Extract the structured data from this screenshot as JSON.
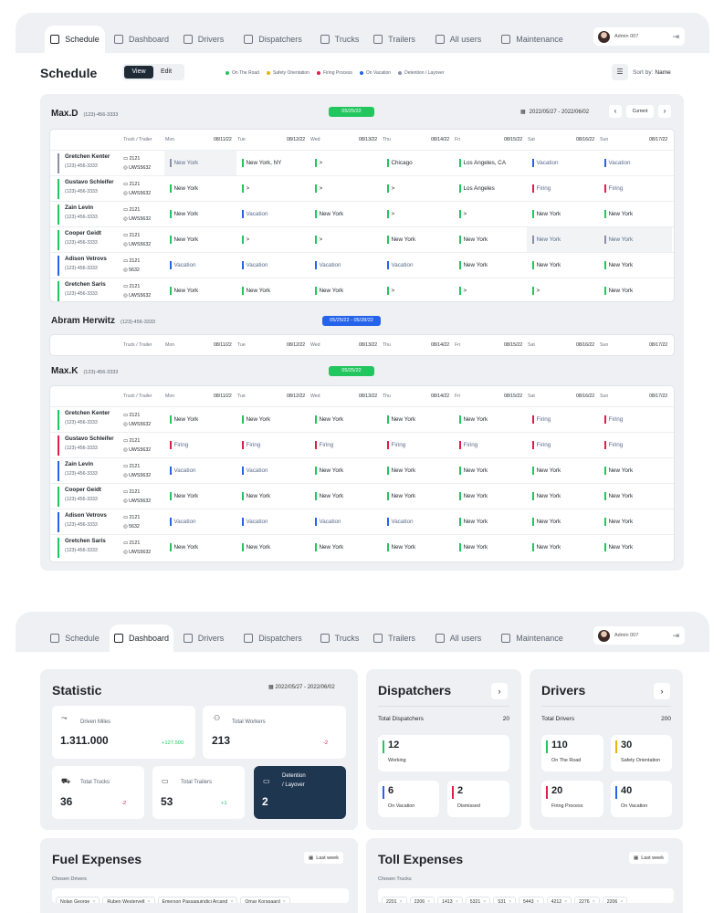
{
  "nav": {
    "tabs": [
      {
        "label": "Schedule",
        "icon": "calendar-icon"
      },
      {
        "label": "Dashboard",
        "icon": "grid-icon"
      },
      {
        "label": "Drivers",
        "icon": "steering-wheel-icon"
      },
      {
        "label": "Dispatchers",
        "icon": "person-icon"
      },
      {
        "label": "Trucks",
        "icon": "truck-icon"
      },
      {
        "label": "Trailers",
        "icon": "trailer-icon"
      },
      {
        "label": "All users",
        "icon": "users-icon"
      },
      {
        "label": "Maintenance",
        "icon": "gear-icon"
      }
    ],
    "user": "Admin 007"
  },
  "schedule": {
    "title": "Schedule",
    "view_label": "View",
    "edit_label": "Edit",
    "legend": [
      {
        "label": "On The Road",
        "color": "#22c55e"
      },
      {
        "label": "Safety Orientation",
        "color": "#eab308"
      },
      {
        "label": "Firing Process",
        "color": "#e11d48"
      },
      {
        "label": "On Vacation",
        "color": "#2563eb"
      },
      {
        "label": "Detention / Layover",
        "color": "#8b90a8"
      }
    ],
    "sort_label": "Sort by:",
    "sort_value": "Name",
    "days": [
      {
        "day": "Mon",
        "date": "08/11/22"
      },
      {
        "day": "Tue",
        "date": "08/12/22"
      },
      {
        "day": "Wed",
        "date": "08/13/22"
      },
      {
        "day": "Thu",
        "date": "08/14/22"
      },
      {
        "day": "Fri",
        "date": "08/15/22"
      },
      {
        "day": "Sat",
        "date": "08/16/22"
      },
      {
        "day": "Sun",
        "date": "08/17/22"
      }
    ],
    "col_truck": "Truck / Trailer",
    "groups": [
      {
        "name": "Max.D",
        "phone": "(123)-456-3333",
        "badge": "05/25/22",
        "badge_color": "#22c55e",
        "range": "2022/05/27 - 2022/06/02",
        "current": "Current",
        "rows": [
          {
            "name": "Gretchen Kenter",
            "phone": "(123)-456-3333",
            "truck": "2121",
            "trailer": "UWS5632",
            "color": "#8b90a8",
            "cells": [
              [
                "New York",
                "#8b90a8",
                1
              ],
              [
                "New York, NY",
                "#22c55e",
                0
              ],
              [
                ">",
                "#22c55e",
                0
              ],
              [
                "Chicago",
                "#22c55e",
                0
              ],
              [
                "Los Angeles, CA",
                "#22c55e",
                0
              ],
              [
                "Vacation",
                "#2563eb",
                0
              ],
              [
                "Vacation",
                "#2563eb",
                0
              ]
            ]
          },
          {
            "name": "Gustavo Schleifer",
            "phone": "(123)-456-3333",
            "truck": "2121",
            "trailer": "UWS5632",
            "color": "#22c55e",
            "cells": [
              [
                "New York",
                "#22c55e",
                0
              ],
              [
                ">",
                "#22c55e",
                0
              ],
              [
                ">",
                "#22c55e",
                0
              ],
              [
                ">",
                "#22c55e",
                0
              ],
              [
                "Los Angeles",
                "#22c55e",
                0
              ],
              [
                "Firing",
                "#e11d48",
                0
              ],
              [
                "Firing",
                "#e11d48",
                0
              ]
            ]
          },
          {
            "name": "Zain Levin",
            "phone": "(123)-456-3333",
            "truck": "2121",
            "trailer": "UWS5632",
            "color": "#22c55e",
            "cells": [
              [
                "New York",
                "#22c55e",
                0
              ],
              [
                "Vacation",
                "#2563eb",
                0
              ],
              [
                "New York",
                "#22c55e",
                0
              ],
              [
                ">",
                "#22c55e",
                0
              ],
              [
                ">",
                "#22c55e",
                0
              ],
              [
                "New York",
                "#22c55e",
                0
              ],
              [
                "New York",
                "#22c55e",
                0
              ]
            ]
          },
          {
            "name": "Cooper Geidt",
            "phone": "(123)-456-3333",
            "truck": "2121",
            "trailer": "UWS5632",
            "color": "#22c55e",
            "cells": [
              [
                "New York",
                "#22c55e",
                0
              ],
              [
                ">",
                "#22c55e",
                0
              ],
              [
                ">",
                "#22c55e",
                0
              ],
              [
                "New York",
                "#22c55e",
                0
              ],
              [
                "New York",
                "#22c55e",
                0
              ],
              [
                "New York",
                "#8b90a8",
                1
              ],
              [
                "New York",
                "#8b90a8",
                1
              ]
            ]
          },
          {
            "name": "Adison Vetrovs",
            "phone": "(123)-456-3333",
            "truck": "2121",
            "trailer": "5632",
            "color": "#2563eb",
            "cells": [
              [
                "Vacation",
                "#2563eb",
                0
              ],
              [
                "Vacation",
                "#2563eb",
                0
              ],
              [
                "Vacation",
                "#2563eb",
                0
              ],
              [
                "Vacation",
                "#2563eb",
                0
              ],
              [
                "New York",
                "#22c55e",
                0
              ],
              [
                "New York",
                "#22c55e",
                0
              ],
              [
                "New York",
                "#22c55e",
                0
              ]
            ]
          },
          {
            "name": "Gretchen Saris",
            "phone": "(123)-456-3333",
            "truck": "2121",
            "trailer": "UWS5632",
            "color": "#22c55e",
            "cells": [
              [
                "New York",
                "#22c55e",
                0
              ],
              [
                "New York",
                "#22c55e",
                0
              ],
              [
                "New York",
                "#22c55e",
                0
              ],
              [
                ">",
                "#22c55e",
                0
              ],
              [
                ">",
                "#22c55e",
                0
              ],
              [
                ">",
                "#22c55e",
                0
              ],
              [
                "New York",
                "#22c55e",
                0
              ]
            ]
          }
        ]
      },
      {
        "name": "Abram Herwitz",
        "phone": "(123)-456-3333",
        "badge": "05/25/22 - 05/28/22",
        "badge_color": "#2563eb",
        "rows": []
      },
      {
        "name": "Max.K",
        "phone": "(123)-456-3333",
        "badge": "05/25/22",
        "badge_color": "#22c55e",
        "rows": [
          {
            "name": "Gretchen Kenter",
            "phone": "(123)-456-3333",
            "truck": "2121",
            "trailer": "UWS5632",
            "color": "#22c55e",
            "cells": [
              [
                "New York",
                "#22c55e",
                0
              ],
              [
                "New York",
                "#22c55e",
                0
              ],
              [
                "New York",
                "#22c55e",
                0
              ],
              [
                "New York",
                "#22c55e",
                0
              ],
              [
                "New York",
                "#22c55e",
                0
              ],
              [
                "Firing",
                "#e11d48",
                0
              ],
              [
                "Firing",
                "#e11d48",
                0
              ]
            ]
          },
          {
            "name": "Gustavo Schleifer",
            "phone": "(123)-456-3333",
            "truck": "2121",
            "trailer": "UWS5632",
            "color": "#e11d48",
            "cells": [
              [
                "Firing",
                "#e11d48",
                0
              ],
              [
                "Firing",
                "#e11d48",
                0
              ],
              [
                "Firing",
                "#e11d48",
                0
              ],
              [
                "Firing",
                "#e11d48",
                0
              ],
              [
                "Firing",
                "#e11d48",
                0
              ],
              [
                "Firing",
                "#e11d48",
                0
              ],
              [
                "Firing",
                "#e11d48",
                0
              ]
            ]
          },
          {
            "name": "Zain Levin",
            "phone": "(123)-456-3333",
            "truck": "2121",
            "trailer": "UWS5632",
            "color": "#2563eb",
            "cells": [
              [
                "Vacation",
                "#2563eb",
                0
              ],
              [
                "Vacation",
                "#2563eb",
                0
              ],
              [
                "New York",
                "#22c55e",
                0
              ],
              [
                "New York",
                "#22c55e",
                0
              ],
              [
                "New York",
                "#22c55e",
                0
              ],
              [
                "New York",
                "#22c55e",
                0
              ],
              [
                "New York",
                "#22c55e",
                0
              ]
            ]
          },
          {
            "name": "Cooper Geidt",
            "phone": "(123)-456-3333",
            "truck": "2121",
            "trailer": "UWS5632",
            "color": "#22c55e",
            "cells": [
              [
                "New York",
                "#22c55e",
                0
              ],
              [
                "New York",
                "#22c55e",
                0
              ],
              [
                "New York",
                "#22c55e",
                0
              ],
              [
                "New York",
                "#22c55e",
                0
              ],
              [
                "New York",
                "#22c55e",
                0
              ],
              [
                "New York",
                "#22c55e",
                0
              ],
              [
                "New York",
                "#22c55e",
                0
              ]
            ]
          },
          {
            "name": "Adison Vetrovs",
            "phone": "(123)-456-3333",
            "truck": "2121",
            "trailer": "5632",
            "color": "#2563eb",
            "cells": [
              [
                "Vacation",
                "#2563eb",
                0
              ],
              [
                "Vacation",
                "#2563eb",
                0
              ],
              [
                "Vacation",
                "#2563eb",
                0
              ],
              [
                "Vacation",
                "#2563eb",
                0
              ],
              [
                "New York",
                "#22c55e",
                0
              ],
              [
                "New York",
                "#22c55e",
                0
              ],
              [
                "New York",
                "#22c55e",
                0
              ]
            ]
          },
          {
            "name": "Gretchen Saris",
            "phone": "(123)-456-3333",
            "truck": "2121",
            "trailer": "UWS5632",
            "color": "#22c55e",
            "cells": [
              [
                "New York",
                "#22c55e",
                0
              ],
              [
                "New York",
                "#22c55e",
                0
              ],
              [
                "New York",
                "#22c55e",
                0
              ],
              [
                "New York",
                "#22c55e",
                0
              ],
              [
                "New York",
                "#22c55e",
                0
              ],
              [
                "New York",
                "#22c55e",
                0
              ],
              [
                "New York",
                "#22c55e",
                0
              ]
            ]
          }
        ]
      }
    ]
  },
  "dashboard": {
    "statistic": {
      "title": "Statistic",
      "range": "2022/05/27 - 2022/06/02",
      "driven_miles_label": "Driven Miles",
      "driven_miles": "1.311.000",
      "driven_miles_delta": "+127.500",
      "total_workers_label": "Total Workers",
      "total_workers": "213",
      "total_workers_delta": "-2",
      "total_trucks_label": "Total Trucks",
      "total_trucks": "36",
      "total_trucks_delta": "-2",
      "total_trailers_label": "Total Trailers",
      "total_trailers": "53",
      "total_trailers_delta": "+1",
      "detention_label_1": "Detention",
      "detention_label_2": "/ Layover",
      "detention": "2"
    },
    "dispatchers": {
      "title": "Dispatchers",
      "total_label": "Total Dispatchers",
      "total": "20",
      "working": "12",
      "working_label": "Working",
      "vacation": "6",
      "vacation_label": "On Vacation",
      "dismissed": "2",
      "dismissed_label": "Dismissed"
    },
    "drivers": {
      "title": "Drivers",
      "total_label": "Total Drivers",
      "total": "200",
      "road": "110",
      "road_label": "On The Road",
      "safety": "30",
      "safety_label": "Safety Orientation",
      "firing": "20",
      "firing_label": "Firing Process",
      "vacation": "40",
      "vacation_label": "On Vacation"
    },
    "fuel": {
      "title": "Fuel Expenses",
      "filter": "Last week",
      "chosen_label": "Chosen Drivers",
      "chips": [
        "Nolan George",
        "Ruben Westervelt",
        "Emerson Passaquindici Arcand",
        "Omar Korsgaard"
      ]
    },
    "toll": {
      "title": "Toll Expenses",
      "filter": "Last week",
      "chosen_label": "Chosen Trucks",
      "chips": [
        "2201",
        "2206",
        "1413",
        "5321",
        "531",
        "5443",
        "4212",
        "2276",
        "2206"
      ]
    }
  }
}
